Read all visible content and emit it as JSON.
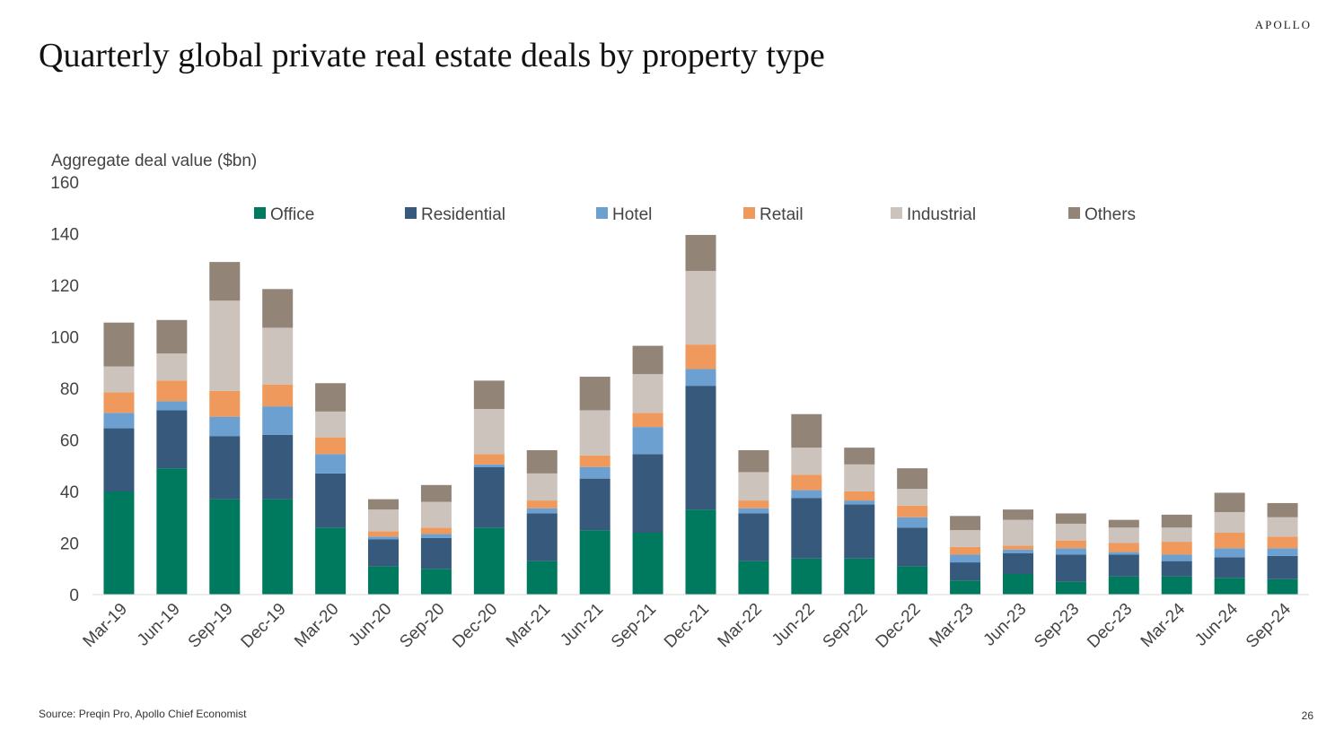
{
  "brand": "APOLLO",
  "title": "Quarterly global private real estate deals by property type",
  "source": "Source: Preqin Pro, Apollo Chief Economist",
  "page_number": "26",
  "chart_data": {
    "type": "bar",
    "stacked": true,
    "ylabel": "Aggregate deal value ($bn)",
    "ylim": [
      0,
      160
    ],
    "yticks": [
      0,
      20,
      40,
      60,
      80,
      100,
      120,
      140,
      160
    ],
    "grid": false,
    "legend_position": "top",
    "categories": [
      "Mar-19",
      "Jun-19",
      "Sep-19",
      "Dec-19",
      "Mar-20",
      "Jun-20",
      "Sep-20",
      "Dec-20",
      "Mar-21",
      "Jun-21",
      "Sep-21",
      "Dec-21",
      "Mar-22",
      "Jun-22",
      "Sep-22",
      "Dec-22",
      "Mar-23",
      "Jun-23",
      "Sep-23",
      "Dec-23",
      "Mar-24",
      "Jun-24",
      "Sep-24"
    ],
    "series": [
      {
        "name": "Office",
        "color": "#007a5e",
        "values": [
          40,
          49,
          37,
          37,
          26,
          11,
          10,
          26,
          13,
          25,
          24,
          33,
          13,
          14,
          14,
          11,
          5.5,
          8,
          5,
          7,
          7,
          6.5,
          6
        ]
      },
      {
        "name": "Residential",
        "color": "#375a7c",
        "values": [
          24.5,
          22.5,
          24.5,
          25,
          21,
          10.5,
          12,
          23.5,
          18.5,
          20,
          30.5,
          48,
          18.5,
          23.5,
          21,
          15,
          7,
          8,
          10.5,
          8.5,
          6,
          8,
          9
        ]
      },
      {
        "name": "Hotel",
        "color": "#6ba0d0",
        "values": [
          6,
          3.5,
          7.5,
          11,
          7.5,
          1,
          1.5,
          1,
          2,
          4.5,
          10.5,
          6.5,
          2,
          3,
          1.5,
          4,
          3,
          1.5,
          2.5,
          1,
          2.5,
          3.5,
          3
        ]
      },
      {
        "name": "Retail",
        "color": "#ef9a5c",
        "values": [
          8,
          8,
          10,
          8.5,
          6.5,
          2,
          2.5,
          4,
          3,
          4.5,
          5.5,
          9.5,
          3,
          6,
          3.5,
          4.5,
          3,
          1.5,
          3,
          3.5,
          5,
          6,
          4.5
        ]
      },
      {
        "name": "Industrial",
        "color": "#cdc3bd",
        "values": [
          10,
          10.5,
          35,
          22,
          10,
          8.5,
          10,
          17.5,
          10.5,
          17.5,
          15,
          28.5,
          11,
          10.5,
          10.5,
          6.5,
          6.5,
          10,
          6.5,
          6,
          5.5,
          8,
          7.5
        ]
      },
      {
        "name": "Others",
        "color": "#928577",
        "values": [
          17,
          13,
          15,
          15,
          11,
          4,
          6.5,
          11,
          9,
          13,
          11,
          14,
          8.5,
          13,
          6.5,
          8,
          5.5,
          4,
          4,
          3,
          5,
          7.5,
          5.5
        ]
      }
    ]
  }
}
